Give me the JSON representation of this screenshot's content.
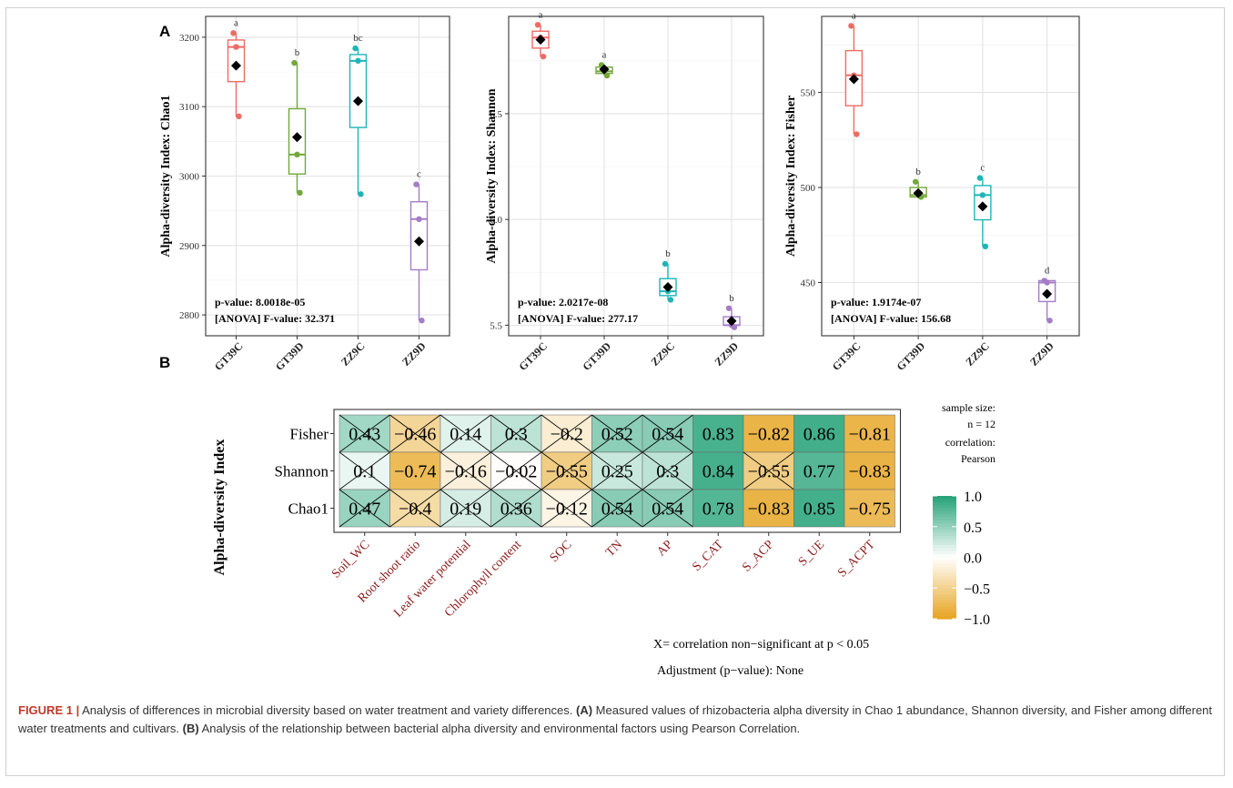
{
  "panel_labels": {
    "a": "A",
    "b": "B"
  },
  "chart_data": [
    {
      "type": "box",
      "panel": "A",
      "ylabel": "Alpha-diversity Index: Chao1",
      "ylim": [
        2770,
        3230
      ],
      "yticks": [
        2800,
        2900,
        3000,
        3100,
        3200
      ],
      "categories": [
        "GT39C",
        "GT39D",
        "ZZ9C",
        "ZZ9D"
      ],
      "colors": [
        "#ee6b64",
        "#72a83a",
        "#1fb5b8",
        "#a57cc7"
      ],
      "boxes": [
        {
          "category": "GT39C",
          "min": 3086,
          "q1": 3136,
          "median": 3186,
          "q3": 3196,
          "max": 3206,
          "mean": 3159,
          "points": [
            3206,
            3186,
            3086
          ],
          "letter": "a"
        },
        {
          "category": "GT39D",
          "min": 2976,
          "q1": 3003,
          "median": 3031,
          "q3": 3097,
          "max": 3163,
          "mean": 3056,
          "points": [
            3163,
            3031,
            2976
          ],
          "letter": "b"
        },
        {
          "category": "ZZ9C",
          "min": 2974,
          "q1": 3070,
          "median": 3166,
          "q3": 3175,
          "max": 3184,
          "mean": 3108,
          "points": [
            3184,
            3166,
            2974
          ],
          "letter": "bc"
        },
        {
          "category": "ZZ9D",
          "min": 2792,
          "q1": 2865,
          "median": 2938,
          "q3": 2963,
          "max": 2988,
          "mean": 2906,
          "points": [
            2988,
            2938,
            2792
          ],
          "letter": "c"
        }
      ],
      "stats_line1": "p-value: 8.0018e-05",
      "stats_line2": "[ANOVA] F-value: 32.371"
    },
    {
      "type": "box",
      "panel": "A",
      "ylabel": "Alpha-diversity Index: Shannon",
      "ylim": [
        5.45,
        6.96
      ],
      "yticks": [
        5.5,
        6.0,
        6.5
      ],
      "ytick_labels": [
        "5.5",
        "6.0",
        "6.5"
      ],
      "categories": [
        "GT39C",
        "GT39D",
        "ZZ9C",
        "ZZ9D"
      ],
      "colors": [
        "#ee6b64",
        "#72a83a",
        "#1fb5b8",
        "#a57cc7"
      ],
      "boxes": [
        {
          "category": "GT39C",
          "min": 6.77,
          "q1": 6.81,
          "median": 6.86,
          "q3": 6.89,
          "max": 6.92,
          "mean": 6.85,
          "points": [
            6.92,
            6.86,
            6.77
          ],
          "letter": "a"
        },
        {
          "category": "GT39D",
          "min": 6.68,
          "q1": 6.69,
          "median": 6.7,
          "q3": 6.72,
          "max": 6.73,
          "mean": 6.71,
          "points": [
            6.73,
            6.7,
            6.68
          ],
          "letter": "a"
        },
        {
          "category": "ZZ9C",
          "min": 5.62,
          "q1": 5.64,
          "median": 5.66,
          "q3": 5.72,
          "max": 5.79,
          "mean": 5.68,
          "points": [
            5.79,
            5.66,
            5.62
          ],
          "letter": "b"
        },
        {
          "category": "ZZ9D",
          "min": 5.49,
          "q1": 5.5,
          "median": 5.5,
          "q3": 5.54,
          "max": 5.58,
          "mean": 5.52,
          "points": [
            5.58,
            5.5,
            5.49
          ],
          "letter": "b"
        }
      ],
      "stats_line1": "p-value: 2.0217e-08",
      "stats_line2": "[ANOVA] F-value: 277.17"
    },
    {
      "type": "box",
      "panel": "A",
      "ylabel": "Alpha-diversity Index: Fisher",
      "ylim": [
        422,
        590
      ],
      "yticks": [
        450,
        500,
        550
      ],
      "categories": [
        "GT39C",
        "GT39D",
        "ZZ9C",
        "ZZ9D"
      ],
      "colors": [
        "#ee6b64",
        "#72a83a",
        "#1fb5b8",
        "#a57cc7"
      ],
      "boxes": [
        {
          "category": "GT39C",
          "min": 528,
          "q1": 543,
          "median": 559,
          "q3": 572,
          "max": 585,
          "mean": 557,
          "points": [
            585,
            559,
            528
          ],
          "letter": "a"
        },
        {
          "category": "GT39D",
          "min": 495,
          "q1": 495,
          "median": 496,
          "q3": 500,
          "max": 503,
          "mean": 497,
          "points": [
            503,
            496,
            495
          ],
          "letter": "b"
        },
        {
          "category": "ZZ9C",
          "min": 469,
          "q1": 483,
          "median": 496,
          "q3": 501,
          "max": 505,
          "mean": 490,
          "points": [
            505,
            496,
            469
          ],
          "letter": "c"
        },
        {
          "category": "ZZ9D",
          "min": 430,
          "q1": 440,
          "median": 450,
          "q3": 451,
          "max": 451,
          "mean": 444,
          "points": [
            451,
            450,
            430
          ],
          "letter": "d"
        }
      ],
      "stats_line1": "p-value: 1.9174e-07",
      "stats_line2": "[ANOVA] F-value: 156.68"
    },
    {
      "type": "heatmap",
      "panel": "B",
      "ylabel": "Alpha-diversity Index",
      "rows": [
        "Fisher",
        "Shannon",
        "Chao1"
      ],
      "columns": [
        "Soil_WC",
        "Root shoot ratio",
        "Leaf water potential",
        "Chlorophyll content",
        "SOC",
        "TN",
        "AP",
        "S_CAT",
        "S_ACP",
        "S_UE",
        "S_ACPT"
      ],
      "values": [
        [
          0.43,
          -0.46,
          0.14,
          0.3,
          -0.2,
          0.52,
          0.54,
          0.83,
          -0.82,
          0.86,
          -0.81
        ],
        [
          0.1,
          -0.74,
          -0.16,
          -0.02,
          -0.55,
          0.25,
          0.3,
          0.84,
          -0.55,
          0.77,
          -0.83
        ],
        [
          0.47,
          -0.4,
          0.19,
          0.36,
          -0.12,
          0.54,
          0.54,
          0.78,
          -0.83,
          0.85,
          -0.75
        ]
      ],
      "value_labels": [
        [
          "0.43",
          "−0.46",
          "0.14",
          "0.3",
          "−0.2",
          "0.52",
          "0.54",
          "0.83",
          "−0.82",
          "0.86",
          "−0.81"
        ],
        [
          "0.1",
          "−0.74",
          "−0.16",
          "−0.02",
          "−0.55",
          "0.25",
          "0.3",
          "0.84",
          "−0.55",
          "0.77",
          "−0.83"
        ],
        [
          "0.47",
          "−0.4",
          "0.19",
          "0.36",
          "−0.12",
          "0.54",
          "0.54",
          "0.78",
          "−0.83",
          "0.85",
          "−0.75"
        ]
      ],
      "non_significant": [
        [
          true,
          true,
          true,
          true,
          true,
          true,
          true,
          false,
          false,
          false,
          false
        ],
        [
          true,
          false,
          true,
          true,
          true,
          true,
          true,
          false,
          true,
          false,
          false
        ],
        [
          true,
          true,
          true,
          true,
          true,
          true,
          true,
          false,
          false,
          false,
          false
        ]
      ],
      "color_scale": {
        "low": "#e6a41f",
        "mid": "#ffffff",
        "high": "#23a177",
        "range": [
          -1.0,
          1.0
        ]
      },
      "legend_ticks": [
        1.0,
        0.5,
        0.0,
        -0.5,
        -1.0
      ],
      "legend_tick_labels": [
        "1.0",
        "0.5",
        "0.0",
        "−0.5",
        "−1.0"
      ],
      "legend_lines": [
        "sample size:",
        "n = 12",
        "correlation:",
        "Pearson"
      ],
      "note_line1": "X= correlation non−significant at p < 0.05",
      "note_line2": "Adjustment (p−value): None"
    }
  ],
  "caption": {
    "label": "FIGURE 1 |",
    "part1": " Analysis of differences in microbial diversity based on water treatment and variety differences. ",
    "tag_a": "(A)",
    "part2": " Measured values of rhizobacteria alpha diversity in Chao 1 abundance, Shannon diversity, and Fisher among different water treatments and cultivars. ",
    "tag_b": "(B)",
    "part3": " Analysis of the relationship between bacterial alpha diversity and environmental factors using Pearson Correlation."
  }
}
